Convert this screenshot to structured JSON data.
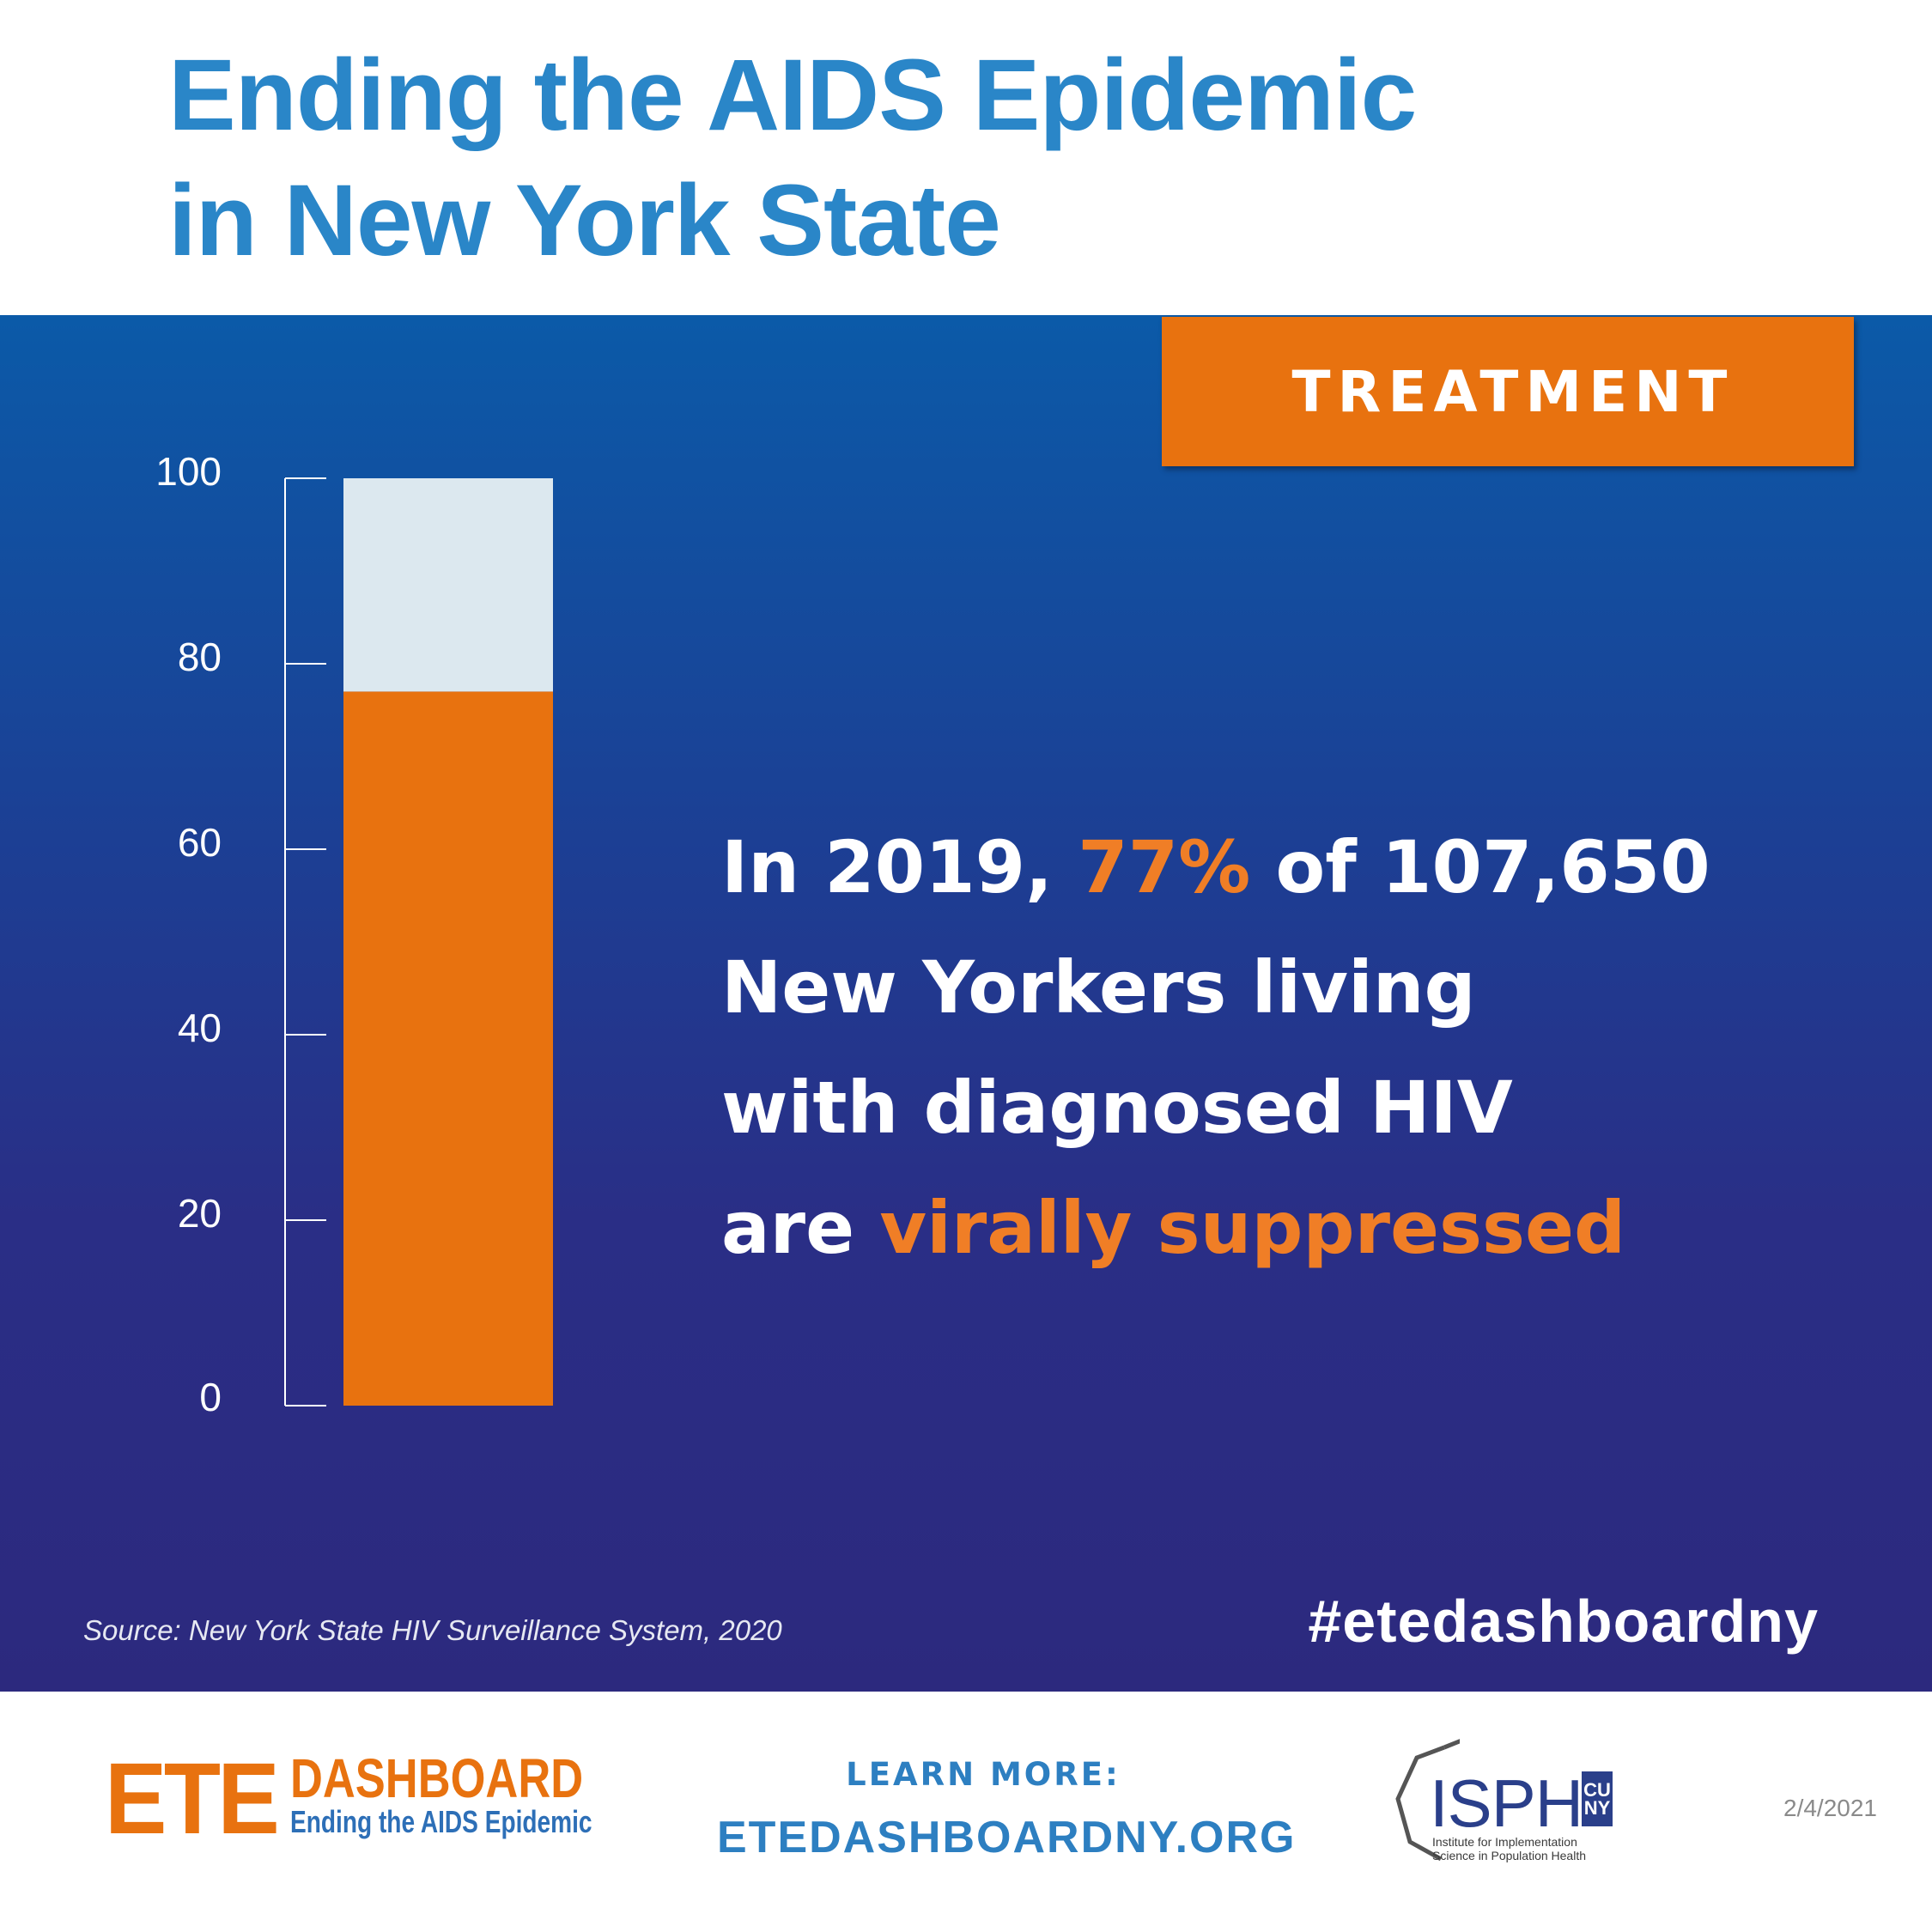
{
  "header": {
    "title_line1": "Ending the AIDS Epidemic",
    "title_line2": "in New York State"
  },
  "badge": {
    "label": "TREATMENT"
  },
  "chart_data": {
    "type": "bar",
    "orientation": "vertical",
    "stacked": true,
    "title": "",
    "xlabel": "",
    "ylabel": "",
    "ylim": [
      0,
      100
    ],
    "yticks": [
      0,
      20,
      40,
      60,
      80,
      100
    ],
    "grid": false,
    "legend": "none",
    "categories": [
      ""
    ],
    "series": [
      {
        "values": [
          77
        ],
        "color": "#e8720f"
      },
      {
        "values": [
          23
        ],
        "color": "#dce8ef"
      }
    ]
  },
  "statement": {
    "line1_prefix": "In 2019, ",
    "line1_highlight": "77%",
    "line1_suffix": " of 107,650",
    "line2": "New Yorkers living",
    "line3": "with diagnosed HIV",
    "line4_prefix": "are ",
    "line4_highlight": "virally suppressed"
  },
  "hashtag": "#etedashboardny",
  "source": "Source: New York State HIV Surveillance System, 2020",
  "footer": {
    "ete_logo_big": "ETE",
    "ete_logo_dashboard": "DASHBOARD",
    "ete_logo_sub": "Ending the AIDS Epidemic",
    "learn_more_label": "LEARN MORE:",
    "learn_more_url": "ETEDASHBOARDNY.ORG",
    "isph_logo_text": "ISPH",
    "isph_cuny_1": "CU",
    "isph_cuny_2": "NY",
    "isph_caption_1": "Institute for Implementation",
    "isph_caption_2": "Science in Population Health",
    "date": "2/4/2021"
  },
  "colors": {
    "title_blue": "#2a86c8",
    "accent_orange": "#e8720f",
    "highlight_orange": "#f07e26",
    "panel_top": "#0b5aa8",
    "panel_bottom": "#2c297e",
    "bar_remainder": "#dce8ef"
  }
}
